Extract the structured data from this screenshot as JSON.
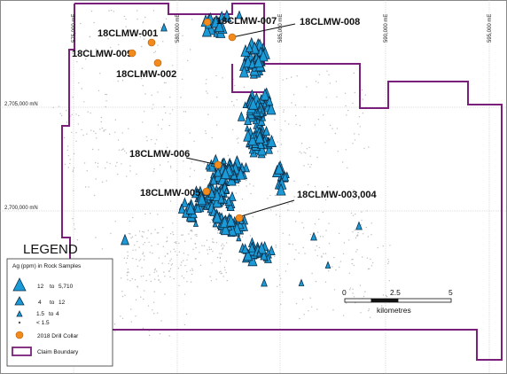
{
  "eastings": [
    "575,000 mE",
    "580,000 mE",
    "585,000 mE",
    "590,000 mE",
    "595,000 mE"
  ],
  "northings": [
    "2,705,000 mN",
    "2,700,000 mN"
  ],
  "drill_holes": [
    {
      "label": "18CLMW-001"
    },
    {
      "label": "18CLMW-009"
    },
    {
      "label": "18CLMW-002"
    },
    {
      "label": "18CLMW-007"
    },
    {
      "label": "18CLMW-008"
    },
    {
      "label": "18CLMW-006"
    },
    {
      "label": "18CLMW-005"
    },
    {
      "label": "18CLMW-003,004"
    }
  ],
  "legend": {
    "title": "LEGEND",
    "heading": "Ag (ppm) in Rock Samples",
    "sizes": [
      {
        "low": "12",
        "sep": "to",
        "high": "5,710"
      },
      {
        "low": "4",
        "sep": "to",
        "high": "12"
      },
      {
        "low": "1.5",
        "sep": "to",
        "high": "4"
      },
      {
        "low": "< 1.5",
        "sep": "",
        "high": ""
      }
    ],
    "collar_label": "2018 Drill Collar",
    "claim_label": "Claim Boundary"
  },
  "scale": {
    "ticks": [
      "0",
      "2.5",
      "5"
    ],
    "unit": "kilometres"
  },
  "colors": {
    "sample_fill": "#1a9ad7",
    "collar_fill": "#f28a1c",
    "claim_stroke": "#7a1f7a"
  }
}
